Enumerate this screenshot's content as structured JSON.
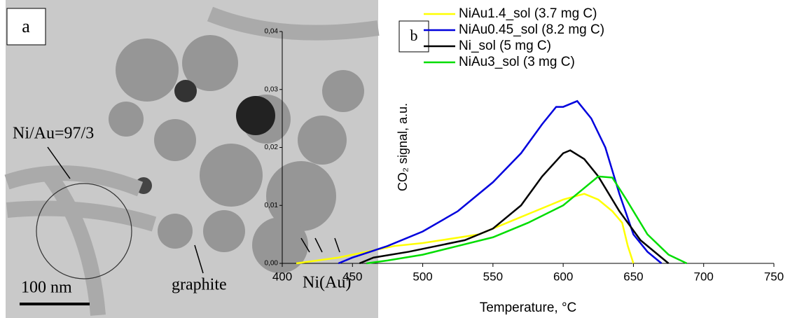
{
  "panel_a": {
    "label": "a",
    "annotations": [
      "Ni/Au=97/3",
      "graphite",
      "Ni(Au)"
    ],
    "scale_bar": "100 nm"
  },
  "chart_data": {
    "type": "line",
    "panel_label": "b",
    "x_label": "Temperature, °C",
    "y_label": "CO₂ signal, a.u.",
    "xlim": [
      400,
      750
    ],
    "xticks": [
      400,
      450,
      500,
      550,
      600,
      650,
      700,
      750
    ],
    "ylim": [
      0,
      0.04
    ],
    "yticks": [
      {
        "value": 0,
        "label": "0,00"
      },
      {
        "value": 0.01,
        "label": "0,01"
      },
      {
        "value": 0.02,
        "label": "0,02"
      },
      {
        "value": 0.03,
        "label": "0,03"
      },
      {
        "value": 0.04,
        "label": "0,04"
      }
    ],
    "series": [
      {
        "name": "NiAu1.4_sol (3.7 mg C)",
        "color": "#ffff00",
        "x": [
          410,
          440,
          480,
          500,
          540,
          565,
          590,
          600,
          615,
          625,
          635,
          642,
          646,
          650
        ],
        "values": [
          0,
          0.001,
          0.003,
          0.0035,
          0.005,
          0.0075,
          0.01,
          0.011,
          0.012,
          0.011,
          0.009,
          0.007,
          0.003,
          0
        ]
      },
      {
        "name": "NiAu0.45_sol (8.2 mg C)",
        "color": "#0000dd",
        "x": [
          440,
          450,
          475,
          500,
          525,
          550,
          570,
          585,
          595,
          600,
          610,
          620,
          630,
          640,
          650,
          660,
          670
        ],
        "values": [
          0,
          0.001,
          0.003,
          0.0055,
          0.009,
          0.014,
          0.019,
          0.024,
          0.027,
          0.027,
          0.028,
          0.025,
          0.02,
          0.012,
          0.005,
          0.002,
          0
        ]
      },
      {
        "name": "Ni_sol (5 mg C)",
        "color": "#000000",
        "x": [
          455,
          465,
          490,
          510,
          530,
          550,
          570,
          585,
          600,
          605,
          615,
          625,
          640,
          655,
          670,
          675
        ],
        "values": [
          0,
          0.001,
          0.002,
          0.003,
          0.004,
          0.006,
          0.01,
          0.015,
          0.019,
          0.0195,
          0.018,
          0.015,
          0.009,
          0.004,
          0.001,
          0
        ]
      },
      {
        "name": "NiAu3_sol (3 mg C)",
        "color": "#00dd00",
        "x": [
          460,
          475,
          500,
          525,
          550,
          575,
          600,
          615,
          625,
          635,
          645,
          660,
          675,
          688
        ],
        "values": [
          0,
          0.0005,
          0.0015,
          0.003,
          0.0045,
          0.007,
          0.01,
          0.013,
          0.015,
          0.0148,
          0.011,
          0.005,
          0.0015,
          0
        ]
      }
    ]
  }
}
